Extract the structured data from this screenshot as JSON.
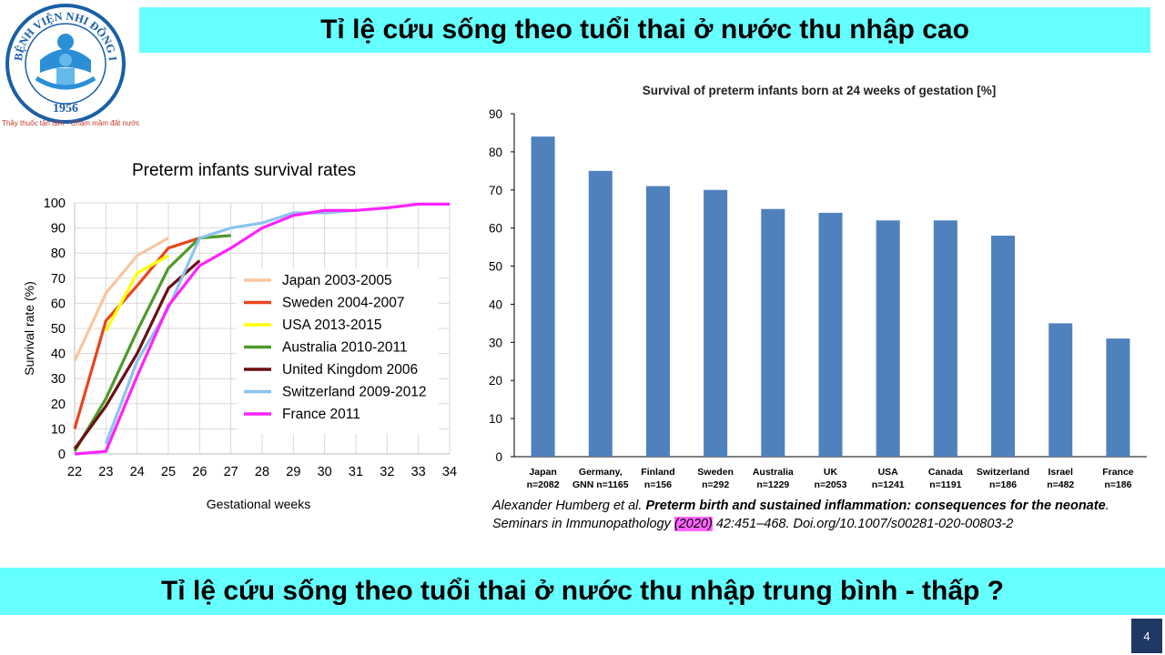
{
  "header": {
    "title": "Tỉ lệ cứu sống theo tuổi thai ở nước thu nhập cao"
  },
  "logo": {
    "text_top": "BỆNH VIỆN NHI ĐỒNG I",
    "year": "1956",
    "slogan": "Thầy thuốc tận tâm - Chạm mầm đất nước",
    "colors": {
      "ring": "#1a5fa8",
      "text": "#1a5fa8",
      "figure": "#2b8fd6",
      "accent": "#63b9ea"
    }
  },
  "chart_data": [
    {
      "type": "line",
      "title": "Preterm infants survival rates",
      "xlabel": "Gestational weeks",
      "ylabel": "Survival rate (%)",
      "xlim": [
        22,
        34
      ],
      "ylim": [
        0,
        100
      ],
      "xticks": [
        "22",
        "23",
        "24",
        "25",
        "26",
        "27",
        "28",
        "29",
        "30",
        "31",
        "32",
        "33",
        "34"
      ],
      "yticks": [
        "0",
        "10",
        "20",
        "30",
        "40",
        "50",
        "60",
        "70",
        "80",
        "90",
        "100"
      ],
      "grid": true,
      "legend": "center-right",
      "series": [
        {
          "name": "Japan 2003-2005",
          "color": "#f7c59f",
          "x": [
            22,
            23,
            24,
            25
          ],
          "y": [
            37,
            64,
            79,
            86
          ]
        },
        {
          "name": "Sweden 2004-2007",
          "color": "#e8461b",
          "x": [
            22,
            23,
            24,
            25,
            26
          ],
          "y": [
            10,
            53,
            67,
            82,
            86
          ]
        },
        {
          "name": "USA 2013-2015",
          "color": "#ffff00",
          "x": [
            23,
            24,
            25
          ],
          "y": [
            49,
            72,
            79
          ]
        },
        {
          "name": "Australia 2010-2011",
          "color": "#4e9a2a",
          "x": [
            22,
            23,
            24,
            25,
            26,
            27
          ],
          "y": [
            1,
            22,
            49,
            74,
            86,
            87
          ]
        },
        {
          "name": "United Kingdom 2006",
          "color": "#6b0f14",
          "x": [
            22,
            23,
            24,
            25,
            26
          ],
          "y": [
            2,
            19,
            40,
            66,
            77
          ]
        },
        {
          "name": "Switzerland 2009-2012",
          "color": "#8cc3ee",
          "x": [
            23,
            24,
            25,
            26,
            27,
            28,
            29,
            30,
            31
          ],
          "y": [
            4,
            37,
            58,
            86,
            90,
            92,
            96,
            96,
            97
          ]
        },
        {
          "name": "France 2011",
          "color": "#ff22ff",
          "x": [
            22,
            23,
            24,
            25,
            26,
            27,
            28,
            29,
            30,
            31,
            32,
            33,
            34
          ],
          "y": [
            0,
            1,
            31,
            59,
            75,
            82,
            90,
            95,
            97,
            97,
            98,
            99.5,
            99.5
          ]
        }
      ]
    },
    {
      "type": "bar",
      "title": "Survival of preterm infants born at 24 weeks of gestation [%]",
      "categories": [
        [
          "Japan",
          "n=2082"
        ],
        [
          "Germany,",
          "GNN n=1165"
        ],
        [
          "Finland",
          "n=156"
        ],
        [
          "Sweden",
          "n=292"
        ],
        [
          "Australia",
          "n=1229"
        ],
        [
          "UK",
          "n=2053"
        ],
        [
          "USA",
          "n=1241"
        ],
        [
          "Canada",
          "n=1191"
        ],
        [
          "Switzerland",
          "n=186"
        ],
        [
          "Israel",
          "n=482"
        ],
        [
          "France",
          "n=186"
        ]
      ],
      "values": [
        84,
        75,
        71,
        70,
        65,
        64,
        62,
        62,
        58,
        35,
        31
      ],
      "ylim": [
        0,
        90
      ],
      "yticks": [
        "0",
        "10",
        "20",
        "30",
        "40",
        "50",
        "60",
        "70",
        "80",
        "90"
      ],
      "grid": false,
      "bar_color": "#4f81bd"
    }
  ],
  "citation": {
    "authors": "Alexander Humberg et al. ",
    "title": "Preterm birth and sustained inflammation: consequences for the neonate",
    "journal": ". Seminars in Immunopathology ",
    "year": "(2020)",
    "rest": " 42:451–468. Doi.org/10.1007/s00281-020-00803-2"
  },
  "footer": {
    "question": "Tỉ lệ cứu sống theo tuổi thai ở nước thu nhập trung bình - thấp ?"
  },
  "page": {
    "number": "4"
  }
}
